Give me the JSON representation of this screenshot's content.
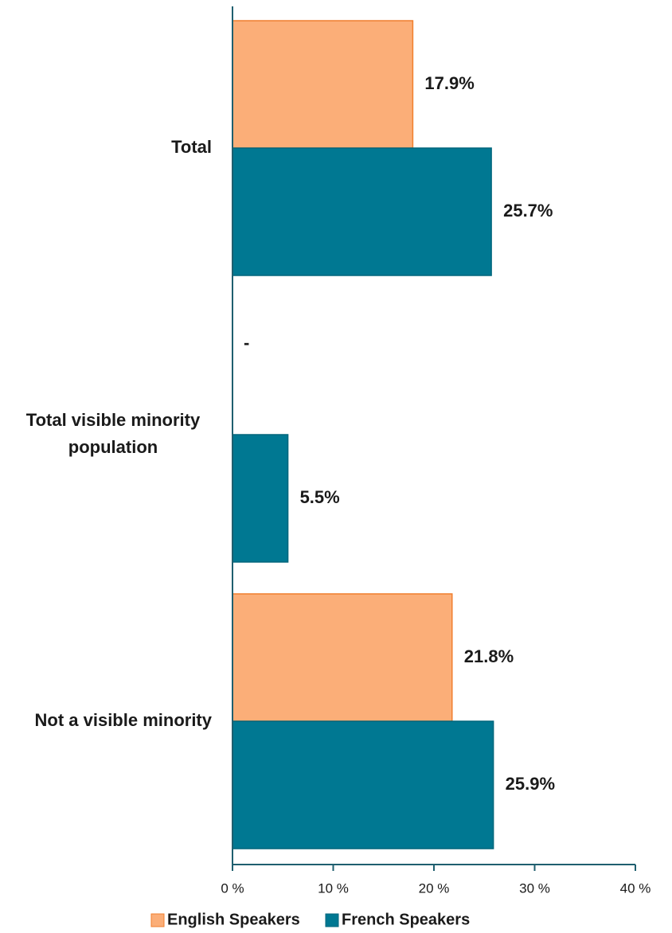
{
  "chart_data": {
    "type": "bar",
    "orientation": "horizontal",
    "categories": [
      "Total",
      "Total visible minority population",
      "Not a visible minority"
    ],
    "category_label_lines": [
      [
        "Total"
      ],
      [
        "Total visible minority",
        "population"
      ],
      [
        "Not a visible minority"
      ]
    ],
    "series": [
      {
        "name": "English Speakers",
        "values": [
          17.9,
          null,
          21.8
        ],
        "labels": [
          "17.9%",
          "-",
          "21.8%"
        ],
        "color": "#FBAE78",
        "border": "#F07F2E"
      },
      {
        "name": "French Speakers",
        "values": [
          25.7,
          5.5,
          25.9
        ],
        "labels": [
          "25.7%",
          "5.5%",
          "25.9%"
        ],
        "color": "#007892",
        "border": "#00667C"
      }
    ],
    "xlim": [
      0,
      40
    ],
    "xticks": [
      0,
      10,
      20,
      30,
      40
    ],
    "xtick_labels": [
      "0 %",
      "10 %",
      "20 %",
      "30 %",
      "40 %"
    ],
    "title": "",
    "xlabel": "",
    "ylabel": "",
    "grid": false,
    "legend_position": "bottom"
  }
}
